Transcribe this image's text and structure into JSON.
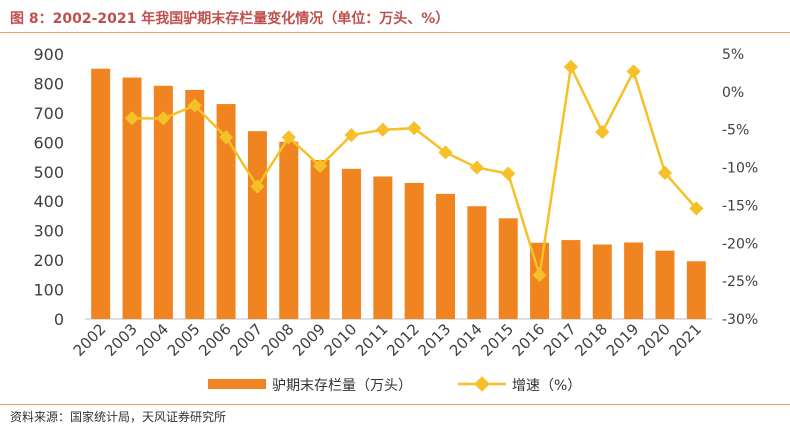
{
  "title": "图 8：2002-2021 年我国驴期末存栏量变化情况（单位：万头、%）",
  "source": "资料来源：国家统计局，天风证券研究所",
  "colors": {
    "bar": "#f08420",
    "line": "#f5c028",
    "accent": "#c0504d",
    "rule": "#f0a060"
  },
  "chart_data": {
    "type": "bar",
    "categories": [
      "2002",
      "2003",
      "2004",
      "2005",
      "2006",
      "2007",
      "2008",
      "2009",
      "2010",
      "2011",
      "2012",
      "2013",
      "2014",
      "2015",
      "2016",
      "2017",
      "2018",
      "2019",
      "2020",
      "2021"
    ],
    "series": [
      {
        "name": "驴期末存栏量（万头）",
        "type": "bar",
        "axis": "left",
        "values": [
          850,
          820,
          792,
          778,
          730,
          638,
          602,
          540,
          510,
          484,
          462,
          425,
          383,
          342,
          259,
          268,
          253,
          260,
          232,
          196
        ]
      },
      {
        "name": "增速（%）",
        "type": "line",
        "axis": "right",
        "values": [
          null,
          -3.5,
          -3.5,
          -1.8,
          -6.0,
          -12.5,
          -6.0,
          -9.8,
          -5.7,
          -5.0,
          -4.8,
          -8.0,
          -10.0,
          -10.8,
          -24.2,
          3.3,
          -5.3,
          2.7,
          -10.7,
          -15.4
        ]
      }
    ],
    "ylim_left": [
      0,
      900
    ],
    "yticks_left": [
      "0",
      "100",
      "200",
      "300",
      "400",
      "500",
      "600",
      "700",
      "800",
      "900"
    ],
    "ylim_right": [
      -30,
      5
    ],
    "yticks_right": [
      "-30%",
      "-25%",
      "-20%",
      "-15%",
      "-10%",
      "-5%",
      "0%",
      "5%"
    ],
    "grid": false,
    "legend_position": "bottom"
  }
}
